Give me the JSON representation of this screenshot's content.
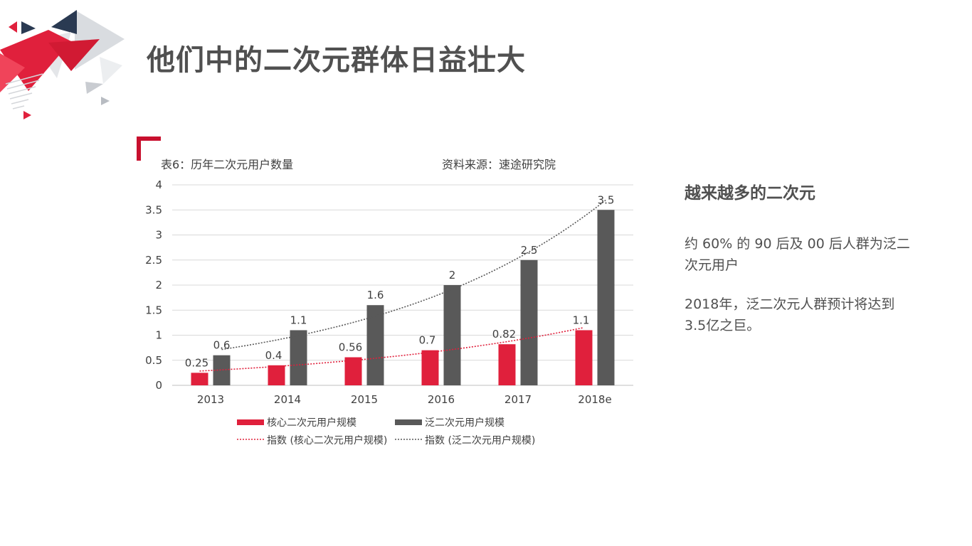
{
  "title": "他们中的二次元群体日益壮大",
  "caption_left": "表6：历年二次元用户数量",
  "caption_right": "资料来源：速途研究院",
  "side": {
    "title": "越来越多的二次元",
    "p1": "约 60% 的 90 后及 00 后人群为泛二次元用户",
    "p2": "2018年，泛二次元人群预计将达到3.5亿之巨。"
  },
  "colors": {
    "accent": "#e0203c",
    "dark": "#595959",
    "navy": "#2a3a52"
  },
  "chart_data": {
    "type": "bar",
    "categories": [
      "2013",
      "2014",
      "2015",
      "2016",
      "2017",
      "2018e"
    ],
    "ylim": [
      0,
      4
    ],
    "yticks": [
      "0",
      "0.5",
      "1",
      "1.5",
      "2",
      "2.5",
      "3",
      "3.5",
      "4"
    ],
    "grid": true,
    "legend_position": "bottom",
    "series": [
      {
        "name": "核心二次元用户规模",
        "values": [
          0.25,
          0.4,
          0.56,
          0.7,
          0.82,
          1.1
        ],
        "labels": [
          "0.25",
          "0.4",
          "0.56",
          "0.7",
          "0.82",
          "1.1"
        ],
        "color": "#e0203c"
      },
      {
        "name": "泛二次元用户规模",
        "values": [
          0.6,
          1.1,
          1.6,
          2,
          2.5,
          3.5
        ],
        "labels": [
          "0.6",
          "1.1",
          "1.6",
          "2",
          "2.5",
          "3.5"
        ],
        "color": "#595959"
      }
    ],
    "trendlines": [
      {
        "name": "指数 (核心二次元用户规模)",
        "type": "exponential",
        "series_index": 0,
        "color": "#e0203c"
      },
      {
        "name": "指数 (泛二次元用户规模)",
        "type": "exponential",
        "series_index": 1,
        "color": "#595959"
      }
    ]
  }
}
